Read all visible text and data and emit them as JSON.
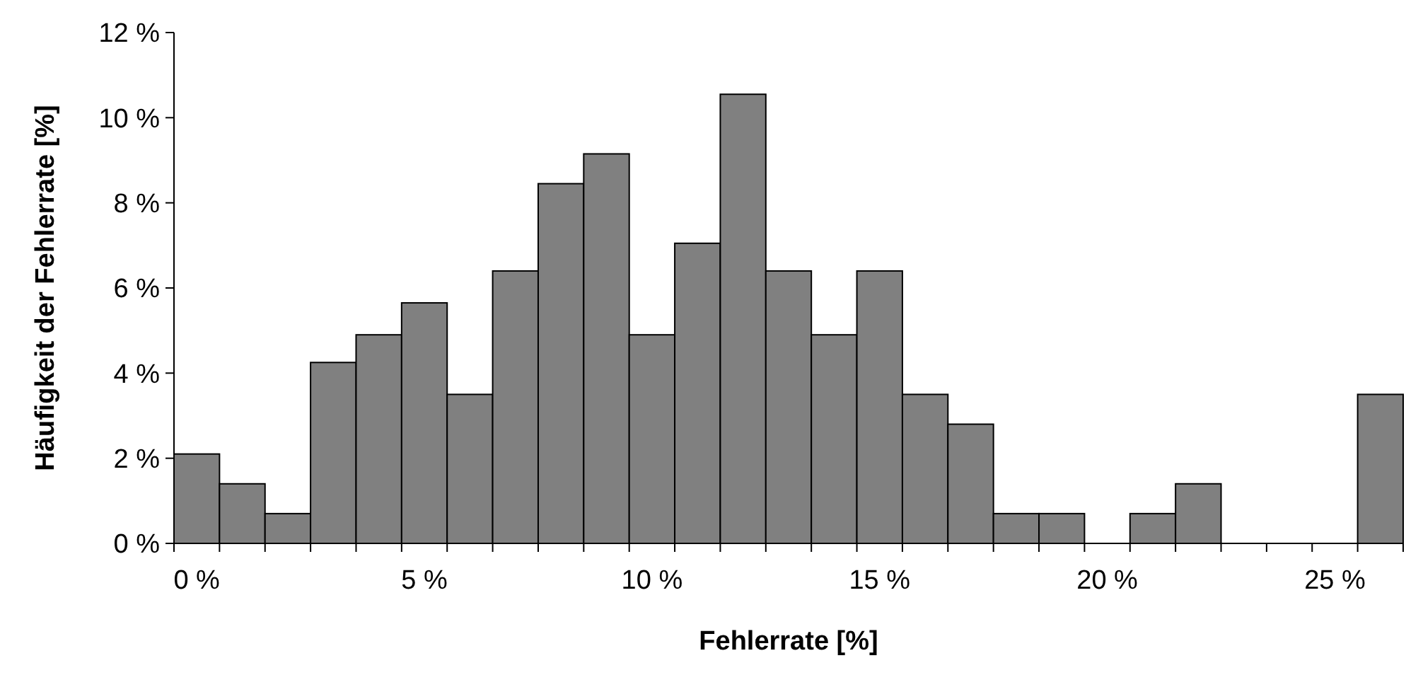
{
  "chart_data": {
    "type": "bar",
    "xlabel": "Fehlerrate [%]",
    "ylabel": "Häufigkeit der Fehlerrate [%]",
    "categories": [
      "0 %",
      null,
      null,
      null,
      null,
      "5 %",
      null,
      null,
      null,
      null,
      "10 %",
      null,
      null,
      null,
      null,
      "15 %",
      null,
      null,
      null,
      null,
      "20 %",
      null,
      null,
      null,
      null,
      "25 %",
      null
    ],
    "values": [
      2.1,
      1.4,
      0.7,
      4.25,
      4.9,
      5.65,
      3.5,
      6.4,
      8.45,
      9.15,
      4.9,
      7.05,
      10.55,
      6.4,
      4.9,
      6.4,
      3.5,
      2.8,
      0.7,
      0.7,
      0,
      0.7,
      1.4,
      0,
      0,
      0,
      3.5
    ],
    "color": "#808080",
    "ylim": [
      0,
      12
    ],
    "yticks": [
      {
        "value": 0,
        "label": "0 %"
      },
      {
        "value": 2,
        "label": "2 %"
      },
      {
        "value": 4,
        "label": "4 %"
      },
      {
        "value": 6,
        "label": "6 %"
      },
      {
        "value": 8,
        "label": "8 %"
      },
      {
        "value": 10,
        "label": "10 %"
      },
      {
        "value": 12,
        "label": "12 %"
      }
    ]
  }
}
